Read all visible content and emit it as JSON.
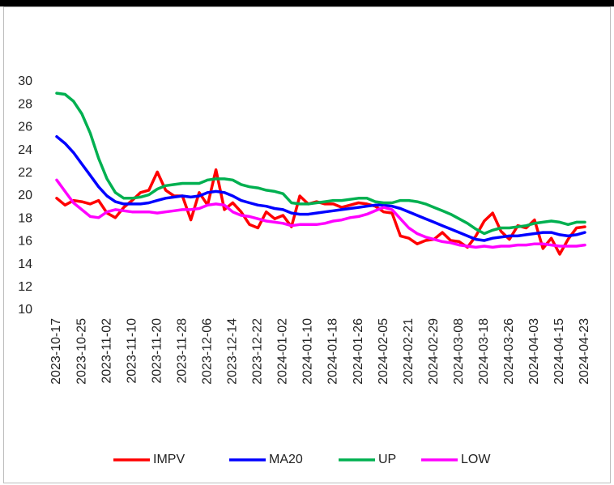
{
  "chart_data": {
    "type": "line",
    "categories": [
      "2023-10-17",
      null,
      null,
      "2023-10-25",
      null,
      null,
      "2023-11-02",
      null,
      null,
      "2023-11-10",
      null,
      null,
      "2023-11-20",
      null,
      null,
      "2023-11-28",
      null,
      null,
      "2023-12-06",
      null,
      null,
      "2023-12-14",
      null,
      null,
      "2023-12-22",
      null,
      null,
      "2024-01-02",
      null,
      null,
      "2024-01-10",
      null,
      null,
      "2024-01-18",
      null,
      null,
      "2024-01-26",
      null,
      null,
      "2024-02-05",
      null,
      null,
      "2024-02-21",
      null,
      null,
      "2024-02-29",
      null,
      null,
      "2024-03-08",
      null,
      null,
      "2024-03-18",
      null,
      null,
      "2024-03-26",
      null,
      null,
      "2024-04-03",
      null,
      null,
      "2024-04-15",
      null,
      null,
      "2024-04-23"
    ],
    "series": [
      {
        "name": "IMPV",
        "color": "#ff0000",
        "values": [
          19.8,
          19.2,
          19.6,
          19.5,
          19.3,
          19.6,
          18.5,
          18.1,
          19.0,
          19.6,
          20.3,
          20.5,
          22.1,
          20.5,
          20.0,
          20.0,
          17.9,
          20.3,
          19.2,
          22.3,
          18.8,
          19.4,
          18.6,
          17.5,
          17.2,
          18.6,
          18.0,
          18.3,
          17.3,
          20.0,
          19.3,
          19.5,
          19.3,
          19.3,
          19.0,
          19.2,
          19.4,
          19.3,
          19.1,
          18.6,
          18.5,
          16.5,
          16.3,
          15.8,
          16.1,
          16.2,
          16.8,
          16.1,
          16.0,
          15.5,
          16.5,
          17.8,
          18.5,
          16.9,
          16.2,
          17.4,
          17.2,
          17.9,
          15.4,
          16.3,
          14.9,
          16.2,
          17.2,
          17.3
        ]
      },
      {
        "name": "MA20",
        "color": "#0000ff",
        "values": [
          25.2,
          24.6,
          23.8,
          22.8,
          21.8,
          20.8,
          20.0,
          19.5,
          19.3,
          19.3,
          19.3,
          19.4,
          19.6,
          19.8,
          19.9,
          20.0,
          19.9,
          20.0,
          20.3,
          20.4,
          20.3,
          20.0,
          19.6,
          19.4,
          19.2,
          19.1,
          18.9,
          18.8,
          18.5,
          18.4,
          18.4,
          18.5,
          18.6,
          18.7,
          18.8,
          18.9,
          19.0,
          19.1,
          19.2,
          19.2,
          19.1,
          18.9,
          18.6,
          18.3,
          18.0,
          17.7,
          17.4,
          17.1,
          16.8,
          16.5,
          16.2,
          16.1,
          16.3,
          16.4,
          16.5,
          16.5,
          16.6,
          16.7,
          16.8,
          16.8,
          16.6,
          16.5,
          16.6,
          16.8
        ]
      },
      {
        "name": "UP",
        "color": "#00b050",
        "values": [
          29.0,
          28.9,
          28.3,
          27.2,
          25.5,
          23.3,
          21.5,
          20.3,
          19.8,
          19.8,
          19.9,
          20.1,
          20.6,
          20.9,
          21.0,
          21.1,
          21.1,
          21.1,
          21.4,
          21.5,
          21.5,
          21.4,
          21.0,
          20.8,
          20.7,
          20.5,
          20.4,
          20.2,
          19.4,
          19.3,
          19.3,
          19.4,
          19.5,
          19.6,
          19.6,
          19.7,
          19.8,
          19.8,
          19.5,
          19.4,
          19.4,
          19.6,
          19.6,
          19.5,
          19.3,
          19.0,
          18.7,
          18.4,
          18.0,
          17.6,
          17.1,
          16.7,
          17.0,
          17.2,
          17.2,
          17.3,
          17.4,
          17.6,
          17.7,
          17.8,
          17.7,
          17.5,
          17.7,
          17.7
        ]
      },
      {
        "name": "LOW",
        "color": "#ff00ff",
        "values": [
          21.4,
          20.4,
          19.4,
          18.8,
          18.2,
          18.1,
          18.6,
          18.8,
          18.7,
          18.6,
          18.6,
          18.6,
          18.5,
          18.6,
          18.7,
          18.8,
          18.8,
          18.9,
          19.2,
          19.3,
          19.2,
          18.6,
          18.3,
          18.2,
          18.0,
          17.8,
          17.7,
          17.6,
          17.4,
          17.5,
          17.5,
          17.5,
          17.6,
          17.8,
          17.9,
          18.1,
          18.2,
          18.4,
          18.7,
          19.0,
          18.8,
          18.0,
          17.2,
          16.7,
          16.4,
          16.2,
          16.0,
          15.9,
          15.7,
          15.6,
          15.5,
          15.6,
          15.5,
          15.6,
          15.6,
          15.7,
          15.7,
          15.8,
          15.8,
          15.7,
          15.6,
          15.6,
          15.6,
          15.7
        ]
      }
    ],
    "ylim": [
      10,
      30
    ],
    "yticks": [
      10,
      12,
      14,
      16,
      18,
      20,
      22,
      24,
      26,
      28,
      30
    ],
    "grid": false,
    "legend": "bottom"
  }
}
